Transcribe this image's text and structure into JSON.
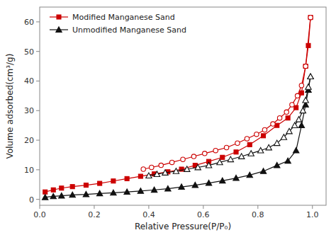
{
  "chart_data": {
    "type": "line",
    "xlabel": "Relative Pressure(P/P₀)",
    "ylabel": "Volume adsorbed(cm³/g)",
    "xlim": [
      0.0,
      1.05
    ],
    "ylim": [
      -2,
      65
    ],
    "xticks": [
      {
        "value": 0.0,
        "label": "0.0"
      },
      0.2,
      0.4,
      0.6,
      0.8,
      {
        "value": 1.0,
        "label": "1.0"
      }
    ],
    "yticks": [
      0,
      10,
      20,
      30,
      40,
      50,
      60
    ],
    "grid": false,
    "legend": "upper left",
    "series": [
      {
        "name": "Modified Manganese Sand",
        "color": "#cc0000",
        "marker": "square",
        "x": [
          0.02,
          0.05,
          0.08,
          0.12,
          0.17,
          0.22,
          0.27,
          0.32,
          0.37,
          0.42,
          0.47,
          0.52,
          0.57,
          0.62,
          0.67,
          0.72,
          0.77,
          0.82,
          0.87,
          0.91,
          0.94,
          0.96,
          0.975,
          0.985,
          0.993
        ],
        "values": [
          2.5,
          3.2,
          3.8,
          4.3,
          4.8,
          5.4,
          6.2,
          7.0,
          7.8,
          8.6,
          9.3,
          10.2,
          11.5,
          12.8,
          14.2,
          16.0,
          18.5,
          21.5,
          25.0,
          27.5,
          31.0,
          36.0,
          45.0,
          52.0,
          61.5
        ]
      },
      {
        "color": "#cc0000",
        "marker": "circle-open",
        "x": [
          0.993,
          0.975,
          0.96,
          0.945,
          0.925,
          0.905,
          0.88,
          0.855,
          0.825,
          0.795,
          0.76,
          0.725,
          0.685,
          0.645,
          0.605,
          0.565,
          0.525,
          0.485,
          0.445,
          0.41,
          0.38
        ],
        "values": [
          61.5,
          45.0,
          38.5,
          35.0,
          32.0,
          29.5,
          27.5,
          25.5,
          23.5,
          22.0,
          20.5,
          19.0,
          17.5,
          16.5,
          15.5,
          14.5,
          13.5,
          12.5,
          11.5,
          10.8,
          10.2
        ]
      },
      {
        "name": "Unmodified Manganese Sand",
        "color": "#111111",
        "marker": "triangle",
        "x": [
          0.02,
          0.05,
          0.08,
          0.12,
          0.17,
          0.22,
          0.27,
          0.32,
          0.37,
          0.42,
          0.47,
          0.52,
          0.57,
          0.62,
          0.67,
          0.72,
          0.77,
          0.82,
          0.87,
          0.91,
          0.94,
          0.96,
          0.975,
          0.985,
          0.993
        ],
        "values": [
          0.7,
          1.0,
          1.2,
          1.5,
          1.7,
          2.0,
          2.2,
          2.5,
          2.8,
          3.2,
          3.6,
          4.2,
          4.8,
          5.5,
          6.3,
          7.2,
          8.2,
          9.5,
          11.5,
          13.0,
          16.5,
          25.0,
          32.0,
          37.0,
          41.5
        ]
      },
      {
        "color": "#111111",
        "marker": "triangle-open",
        "x": [
          0.993,
          0.985,
          0.975,
          0.965,
          0.95,
          0.935,
          0.915,
          0.895,
          0.87,
          0.84,
          0.81,
          0.775,
          0.74,
          0.7,
          0.66,
          0.62,
          0.58,
          0.54,
          0.5,
          0.46,
          0.43,
          0.4
        ],
        "values": [
          41.5,
          38.0,
          33.5,
          30.0,
          27.0,
          25.0,
          23.0,
          21.0,
          19.0,
          17.5,
          16.5,
          15.5,
          14.5,
          13.5,
          12.5,
          11.5,
          10.8,
          10.2,
          9.5,
          9.0,
          8.5,
          8.0
        ]
      }
    ]
  }
}
